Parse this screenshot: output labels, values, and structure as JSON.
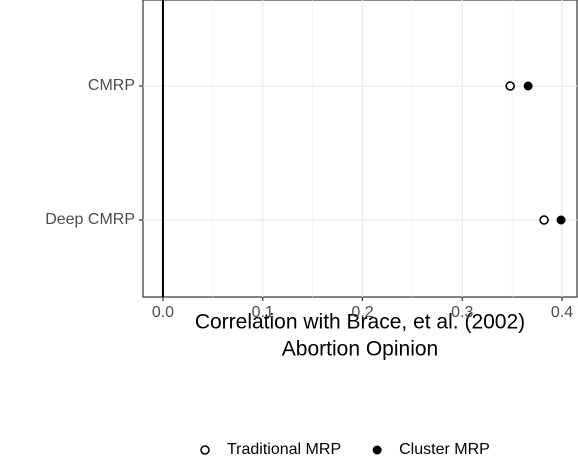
{
  "chart_data": {
    "type": "dot",
    "x_label": [
      "Correlation with Brace, et al. (2002)",
      "Abortion Opinion"
    ],
    "categories": [
      "CMRP",
      "Deep CMRP"
    ],
    "series": [
      {
        "name": "Traditional MRP",
        "color": "#000000",
        "marker": "open-circle",
        "values": [
          0.348,
          0.382
        ]
      },
      {
        "name": "Cluster MRP",
        "color": "#000000",
        "marker": "filled-circle",
        "values": [
          0.366,
          0.399
        ]
      }
    ],
    "xlim": [
      -0.02,
      0.415
    ],
    "xticks": [
      {
        "value": 0,
        "label": "0.0"
      },
      0.1,
      0.2,
      0.3,
      0.4
    ],
    "vline": 0,
    "grid": true,
    "legend": "bottom"
  }
}
